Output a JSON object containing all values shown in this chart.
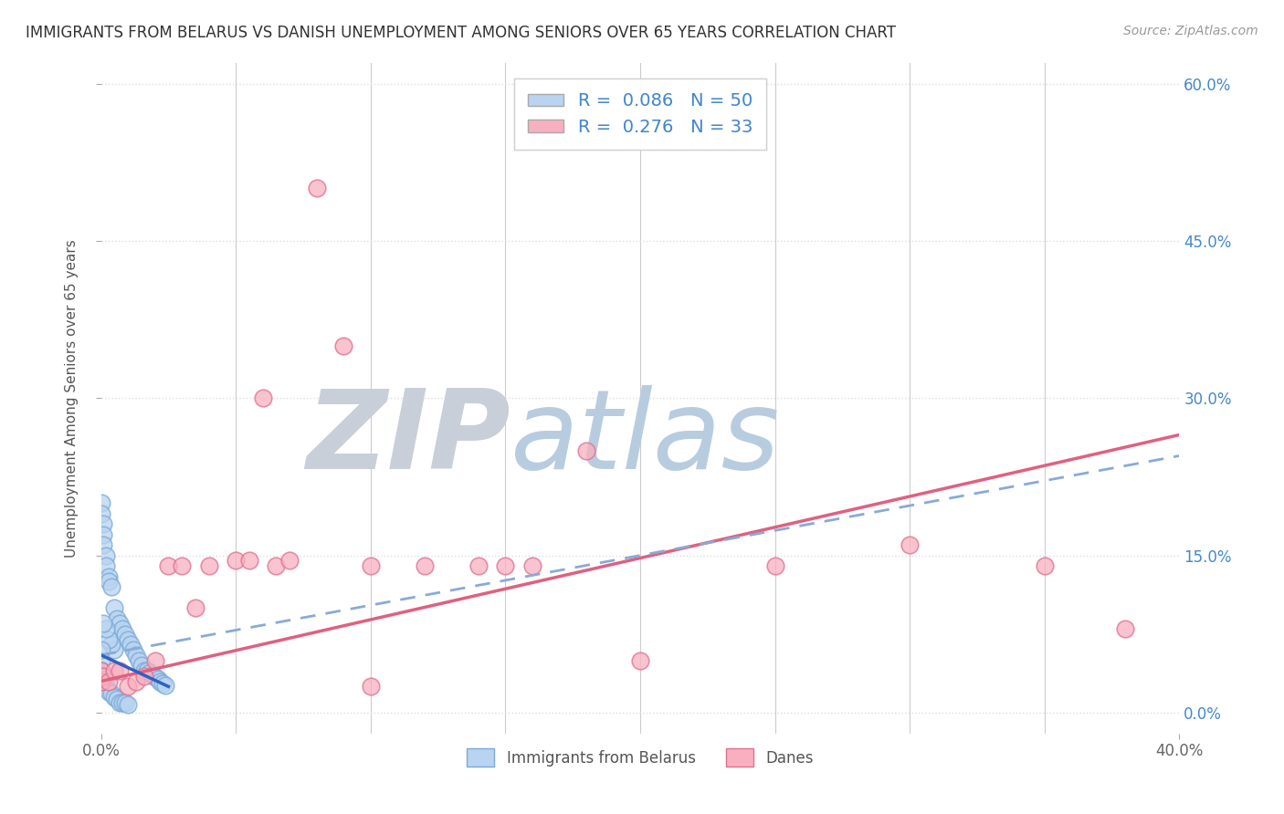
{
  "title": "IMMIGRANTS FROM BELARUS VS DANISH UNEMPLOYMENT AMONG SENIORS OVER 65 YEARS CORRELATION CHART",
  "source": "Source: ZipAtlas.com",
  "ylabel": "Unemployment Among Seniors over 65 years",
  "legend_label1": "Immigrants from Belarus",
  "legend_label2": "Danes",
  "R1": 0.086,
  "N1": 50,
  "R2": 0.276,
  "N2": 33,
  "color1": "#b8d4f0",
  "color2": "#f8b0c0",
  "edge_color1": "#7aaad8",
  "edge_color2": "#e07090",
  "trendline_blue_solid_color": "#3060c0",
  "trendline_blue_dashed_color": "#88aad8",
  "trendline_pink_color": "#e06080",
  "xlim": [
    0.0,
    0.4
  ],
  "ylim": [
    -0.02,
    0.62
  ],
  "x_ticks": [
    0.0,
    0.4
  ],
  "x_tick_labels": [
    "0.0%",
    "40.0%"
  ],
  "x_minor_ticks": [
    0.05,
    0.1,
    0.15,
    0.2,
    0.25,
    0.3,
    0.35
  ],
  "y_ticks_right": [
    0.0,
    0.15,
    0.3,
    0.45,
    0.6
  ],
  "y_tick_labels_right": [
    "0.0%",
    "15.0%",
    "30.0%",
    "45.0%",
    "60.0%"
  ],
  "watermark_zip": "ZIP",
  "watermark_atlas": "atlas",
  "watermark_zip_color": "#c8cfd8",
  "watermark_atlas_color": "#b8cce0",
  "background_color": "#ffffff",
  "grid_color": "#dddddd",
  "blue_points_x": [
    0.0,
    0.0,
    0.001,
    0.001,
    0.001,
    0.002,
    0.002,
    0.003,
    0.003,
    0.004,
    0.005,
    0.006,
    0.007,
    0.008,
    0.009,
    0.01,
    0.011,
    0.012,
    0.013,
    0.014,
    0.015,
    0.016,
    0.017,
    0.018,
    0.019,
    0.02,
    0.021,
    0.022,
    0.023,
    0.024,
    0.005,
    0.004,
    0.003,
    0.002,
    0.001,
    0.0,
    0.0,
    0.001,
    0.002,
    0.003,
    0.004,
    0.005,
    0.006,
    0.007,
    0.008,
    0.009,
    0.01,
    0.0,
    0.0,
    0.0
  ],
  "blue_points_y": [
    0.2,
    0.19,
    0.18,
    0.17,
    0.16,
    0.15,
    0.14,
    0.13,
    0.125,
    0.12,
    0.1,
    0.09,
    0.085,
    0.08,
    0.075,
    0.07,
    0.065,
    0.06,
    0.055,
    0.05,
    0.045,
    0.04,
    0.04,
    0.038,
    0.036,
    0.034,
    0.032,
    0.03,
    0.028,
    0.026,
    0.06,
    0.065,
    0.07,
    0.08,
    0.085,
    0.05,
    0.04,
    0.03,
    0.025,
    0.02,
    0.018,
    0.015,
    0.013,
    0.01,
    0.01,
    0.01,
    0.008,
    0.06,
    0.04,
    0.03
  ],
  "pink_points_x": [
    0.0,
    0.0,
    0.001,
    0.003,
    0.005,
    0.007,
    0.01,
    0.013,
    0.016,
    0.02,
    0.025,
    0.03,
    0.035,
    0.04,
    0.05,
    0.055,
    0.06,
    0.065,
    0.07,
    0.08,
    0.09,
    0.1,
    0.1,
    0.12,
    0.14,
    0.15,
    0.16,
    0.18,
    0.2,
    0.25,
    0.3,
    0.35,
    0.38
  ],
  "pink_points_y": [
    0.04,
    0.03,
    0.035,
    0.03,
    0.04,
    0.04,
    0.025,
    0.03,
    0.035,
    0.05,
    0.14,
    0.14,
    0.1,
    0.14,
    0.145,
    0.145,
    0.3,
    0.14,
    0.145,
    0.5,
    0.35,
    0.14,
    0.025,
    0.14,
    0.14,
    0.14,
    0.14,
    0.25,
    0.05,
    0.14,
    0.16,
    0.14,
    0.08
  ],
  "trendline_pink_x0": 0.0,
  "trendline_pink_x1": 0.4,
  "trendline_pink_y0": 0.03,
  "trendline_pink_y1": 0.265,
  "trendline_blue_dashed_x0": 0.0,
  "trendline_blue_dashed_x1": 0.4,
  "trendline_blue_dashed_y0": 0.055,
  "trendline_blue_dashed_y1": 0.245,
  "trendline_blue_solid_x0": 0.0,
  "trendline_blue_solid_x1": 0.025,
  "trendline_blue_solid_y0": 0.055,
  "trendline_blue_solid_y1": 0.025
}
